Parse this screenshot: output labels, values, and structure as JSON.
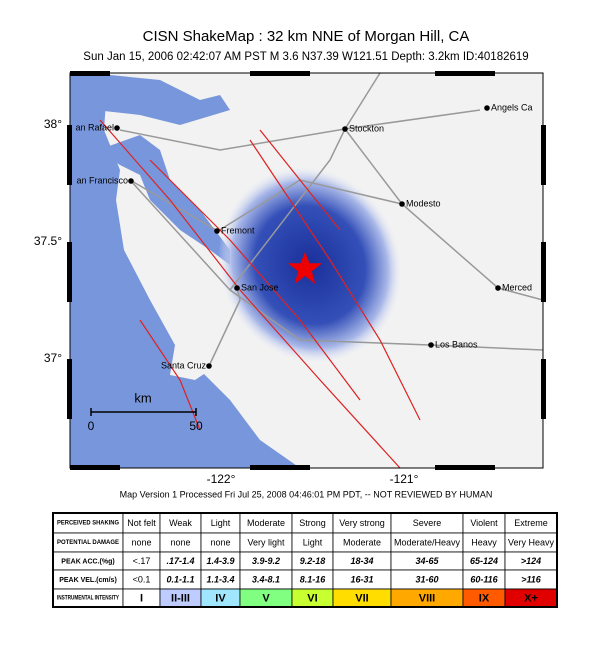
{
  "header": {
    "title": "CISN ShakeMap :  32 km NNE of Morgan Hill, CA",
    "subtitle": "Sun Jan 15, 2006 02:42:07 AM PST   M 3.6   N37.39 W121.51   Depth: 3.2km   ID:40182619"
  },
  "map": {
    "lat_labels": [
      "38°",
      "37.5°",
      "37°"
    ],
    "lon_labels": [
      "-122°",
      "-121°"
    ],
    "cities": [
      "an Rafael",
      "Stockton",
      "Angels Ca",
      "an Francisco",
      "Modesto",
      "Fremont",
      "San Jose",
      "Merced",
      "Los Banos",
      "Santa Cruz"
    ],
    "scale": {
      "unit": "km",
      "start": "0",
      "end": "50"
    }
  },
  "footer": "Map Version 1 Processed Fri Jul 25, 2008 04:46:01 PM PDT, -- NOT REVIEWED BY HUMAN",
  "legend": {
    "rows": [
      [
        "PERCEIVED SHAKING",
        "Not felt",
        "Weak",
        "Light",
        "Moderate",
        "Strong",
        "Very strong",
        "Severe",
        "Violent",
        "Extreme"
      ],
      [
        "POTENTIAL DAMAGE",
        "none",
        "none",
        "none",
        "Very light",
        "Light",
        "Moderate",
        "Moderate/Heavy",
        "Heavy",
        "Very Heavy"
      ],
      [
        "PEAK ACC.(%g)",
        "<.17",
        ".17-1.4",
        "1.4-3.9",
        "3.9-9.2",
        "9.2-18",
        "18-34",
        "34-65",
        "65-124",
        ">124"
      ],
      [
        "PEAK VEL.(cm/s)",
        "<0.1",
        "0.1-1.1",
        "1.1-3.4",
        "3.4-8.1",
        "8.1-16",
        "16-31",
        "31-60",
        "60-116",
        ">116"
      ],
      [
        "INSTRUMENTAL INTENSITY",
        "I",
        "II-III",
        "IV",
        "V",
        "VI",
        "VII",
        "VIII",
        "IX",
        "X+"
      ]
    ]
  }
}
